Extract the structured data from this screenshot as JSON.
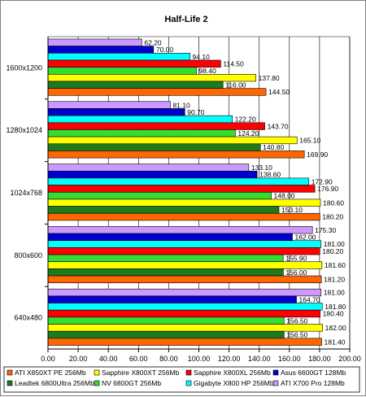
{
  "chart_data": {
    "type": "bar",
    "orientation": "horizontal",
    "title": "Half-Life 2",
    "xlabel": "",
    "ylabel": "",
    "xlim": [
      0,
      200
    ],
    "x_ticks": [
      "0.00",
      "20.00",
      "40.00",
      "60.00",
      "80.00",
      "100.00",
      "120.00",
      "140.00",
      "160.00",
      "180.00",
      "200.00"
    ],
    "grid": "vertical",
    "legend_position": "bottom",
    "categories": [
      "1600x1200",
      "1280x1024",
      "1024x768",
      "800x600",
      "640x480"
    ],
    "series": [
      {
        "name": "ATI X850XT PE 256Mb",
        "color": "#ff6600",
        "values": [
          144.5,
          169.9,
          180.2,
          181.2,
          181.4
        ],
        "labels": [
          "144.50",
          "169.90",
          "180.20",
          "181.20",
          "181.40"
        ]
      },
      {
        "name": "Leadtek 6800Ultra 256Mb",
        "color": "#1e7a1e",
        "values": [
          116.0,
          140.8,
          153.1,
          156.0,
          156.5
        ],
        "labels": [
          "116.00",
          "140.80",
          "153.10",
          "156.00",
          "156.50"
        ]
      },
      {
        "name": "Sapphire X800XT 256Mb",
        "color": "#ffff00",
        "values": [
          137.8,
          165.1,
          180.6,
          181.6,
          182.0
        ],
        "labels": [
          "137.80",
          "165.10",
          "180.60",
          "181.60",
          "182.00"
        ]
      },
      {
        "name": "NV 6800GT 256Mb",
        "color": "#33dd33",
        "values": [
          98.4,
          124.2,
          148.0,
          155.9,
          156.5
        ],
        "labels": [
          "98.40",
          "124.20",
          "148.00",
          "155.90",
          "156.50"
        ]
      },
      {
        "name": "Sapphire X800XL 256Mb",
        "color": "#ff0000",
        "values": [
          114.5,
          143.7,
          176.9,
          180.2,
          180.4
        ],
        "labels": [
          "114.50",
          "143.70",
          "176.90",
          "180.20",
          "180.40"
        ]
      },
      {
        "name": "Gigabyte X800 HP 256Mb",
        "color": "#00ffff",
        "values": [
          94.1,
          122.2,
          172.9,
          181.0,
          181.8
        ],
        "labels": [
          "94.10",
          "122.20",
          "172.90",
          "181.00",
          "181.80"
        ]
      },
      {
        "name": "Asus 6600GT 128Mb",
        "color": "#0000cc",
        "values": [
          70.0,
          90.7,
          138.6,
          162.0,
          164.7
        ],
        "labels": [
          "70.00",
          "90.70",
          "138.60",
          "162.00",
          "164.70"
        ]
      },
      {
        "name": "ATI X700 Pro 128Mb",
        "color": "#cc99ff",
        "values": [
          62.2,
          81.1,
          133.1,
          175.3,
          181.0
        ],
        "labels": [
          "62.20",
          "81.10",
          "133.10",
          "175.30",
          "181.00"
        ]
      }
    ]
  }
}
